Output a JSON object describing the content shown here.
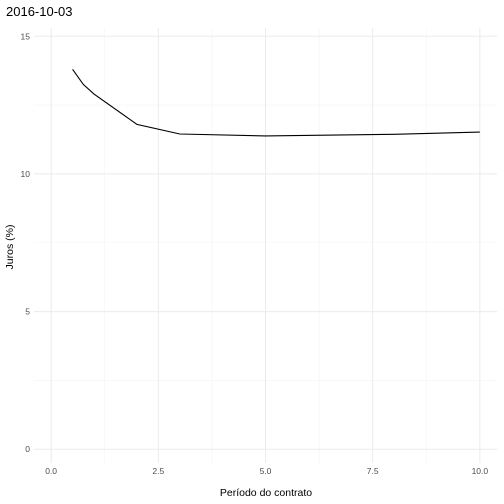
{
  "chart_data": {
    "type": "line",
    "title": "2016-10-03",
    "xlabel": "Período do contrato",
    "ylabel": "Juros (%)",
    "xlim": [
      -0.4,
      10.4
    ],
    "ylim": [
      -0.5,
      15.3
    ],
    "x_ticks": [
      0,
      2.5,
      5,
      7.5,
      10
    ],
    "x_tick_labels": [
      "0.0",
      "2.5",
      "5.0",
      "7.5",
      "10.0"
    ],
    "x_minor_ticks": [
      1.25,
      3.75,
      6.25,
      8.75
    ],
    "y_ticks": [
      0,
      5,
      10,
      15
    ],
    "y_tick_labels": [
      "0",
      "5",
      "10",
      "15"
    ],
    "y_minor_ticks": [
      2.5,
      7.5,
      12.5
    ],
    "grid": true,
    "series": [
      {
        "x": [
          0.5,
          0.75,
          1,
          2,
          3,
          5,
          8,
          10
        ],
        "values": [
          13.8,
          13.25,
          12.9,
          11.8,
          11.45,
          11.38,
          11.44,
          11.52
        ]
      }
    ]
  }
}
